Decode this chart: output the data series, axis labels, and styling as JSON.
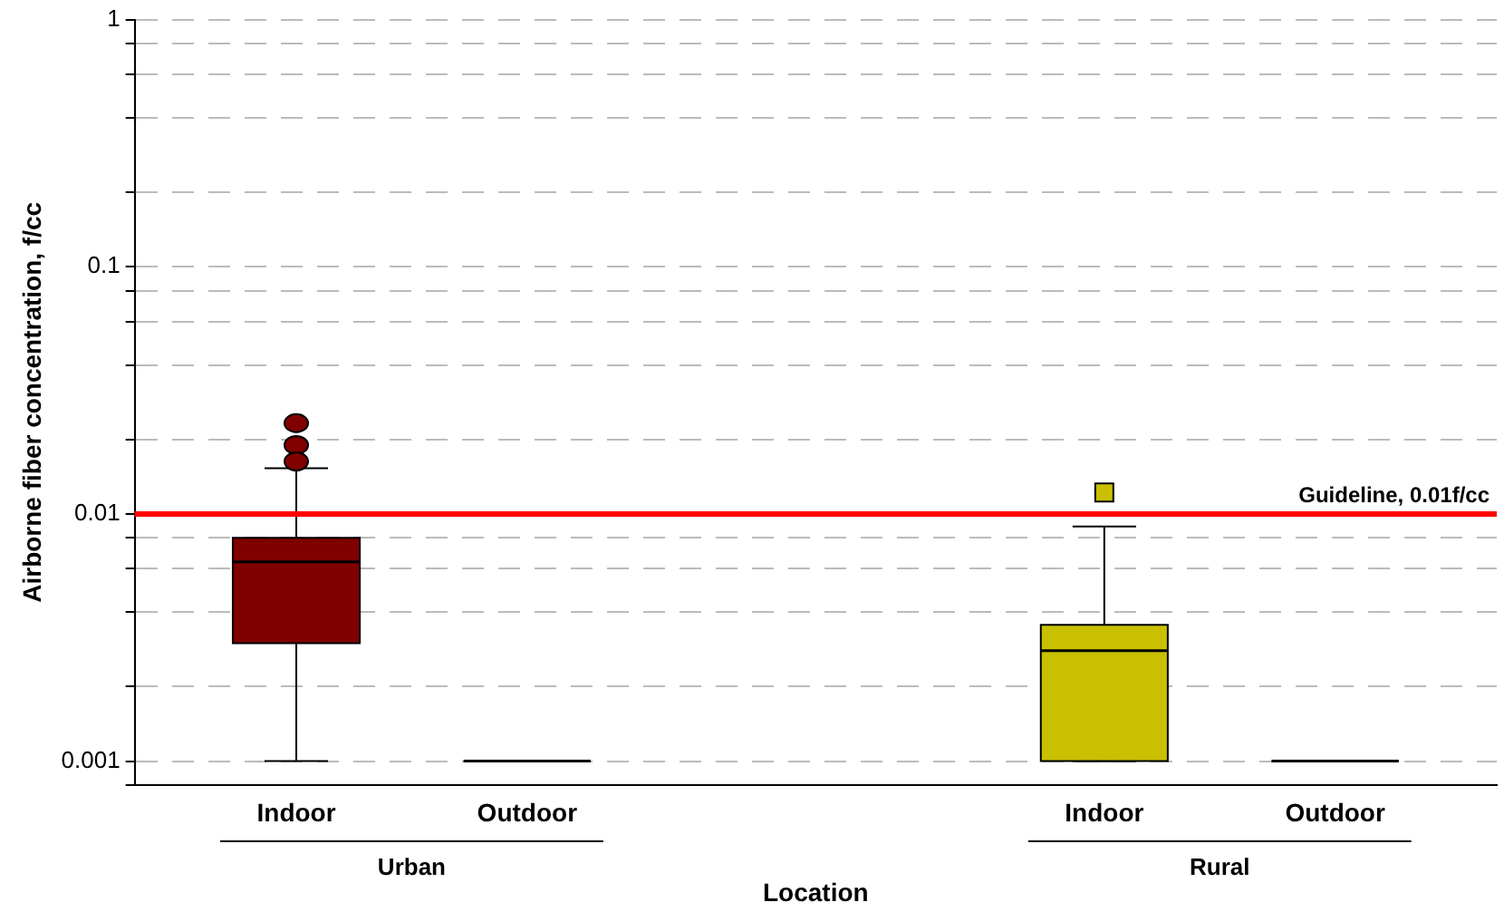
{
  "chart_data": {
    "type": "box",
    "xlabel": "Location",
    "ylabel": "Airborne fiber concentration, f/cc",
    "categories": [
      "Indoor",
      "Outdoor",
      "Indoor",
      "Outdoor"
    ],
    "series": [
      {
        "color": "#800000",
        "marker": "circle",
        "boxes": [
          {
            "low": 0.001,
            "q1": 0.003,
            "median": 0.0064,
            "q3": 0.008,
            "high": 0.0153,
            "outliers": [
              0.0233,
              0.019,
              0.0163
            ]
          },
          null,
          null,
          null
        ]
      },
      {
        "color": "#000000",
        "boxes": [
          null,
          {
            "low": 0.001,
            "q1": 0.001,
            "median": 0.001,
            "q3": 0.001,
            "high": 0.001
          },
          null,
          {
            "low": 0.001,
            "q1": 0.001,
            "median": 0.001,
            "q3": 0.001,
            "high": 0.001
          }
        ]
      },
      {
        "color": "#c8c000",
        "marker": "square",
        "boxes": [
          null,
          null,
          {
            "low": 0.001,
            "q1": 0.001,
            "median": 0.0028,
            "q3": 0.00356,
            "high": 0.0089,
            "outliers": [
              0.0122
            ]
          },
          null
        ]
      }
    ],
    "log": true,
    "ylim": [
      0.0008,
      1
    ],
    "yticks": [
      {
        "value": 0.0008,
        "label": null
      },
      0.001,
      {
        "value": 0.002,
        "label": null
      },
      {
        "value": 0.004,
        "label": null
      },
      {
        "value": 0.006,
        "label": null
      },
      {
        "value": 0.008,
        "label": null
      },
      0.01,
      {
        "value": 0.02,
        "label": null
      },
      {
        "value": 0.04,
        "label": null
      },
      {
        "value": 0.06,
        "label": null
      },
      {
        "value": 0.08,
        "label": null
      },
      0.1,
      {
        "value": 0.2,
        "label": null
      },
      {
        "value": 0.4,
        "label": null
      },
      {
        "value": 0.6,
        "label": null
      },
      {
        "value": 0.8,
        "label": null
      },
      1
    ],
    "grid": "y",
    "ref_lines": [
      {
        "axis": "y",
        "value": 0.01,
        "label": "Guideline, 0.01f/cc",
        "color": "#ff0000"
      }
    ],
    "annotations": [
      "Urban",
      "Rural"
    ]
  }
}
